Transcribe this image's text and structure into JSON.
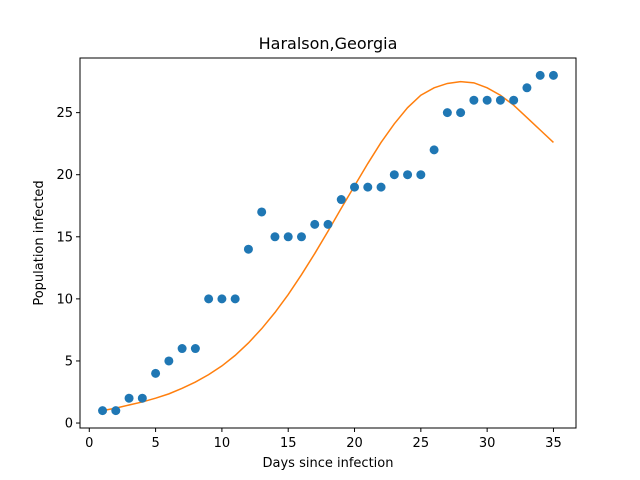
{
  "chart_data": {
    "type": "scatter",
    "title": "Haralson,Georgia",
    "xlabel": "Days since infection",
    "ylabel": "Population infected",
    "xlim": [
      -0.7,
      36.7
    ],
    "ylim": [
      -0.4,
      29.4
    ],
    "xticks": [
      0,
      5,
      10,
      15,
      20,
      25,
      30,
      35
    ],
    "yticks": [
      0,
      5,
      10,
      15,
      20,
      25
    ],
    "grid": false,
    "series": [
      {
        "kind": "scatter",
        "color": "#1f77b4",
        "x": [
          1,
          2,
          3,
          4,
          5,
          6,
          7,
          8,
          9,
          10,
          11,
          12,
          13,
          14,
          15,
          16,
          17,
          18,
          19,
          20,
          21,
          22,
          23,
          24,
          25,
          26,
          27,
          28,
          29,
          30,
          31,
          32,
          33,
          34,
          35
        ],
        "y": [
          1,
          1,
          2,
          2,
          4,
          5,
          6,
          6,
          10,
          10,
          10,
          14,
          17,
          15,
          15,
          15,
          16,
          16,
          18,
          19,
          19,
          19,
          20,
          20,
          20,
          22,
          25,
          25,
          26,
          26,
          26,
          26,
          27,
          28,
          28
        ]
      },
      {
        "kind": "line",
        "color": "#ff7f0e",
        "x": [
          1,
          2,
          3,
          4,
          5,
          6,
          7,
          8,
          9,
          10,
          11,
          12,
          13,
          14,
          15,
          16,
          17,
          18,
          19,
          20,
          21,
          22,
          23,
          24,
          25,
          26,
          27,
          28,
          29,
          30,
          31,
          32,
          33,
          34,
          35
        ],
        "y": [
          1.0,
          1.2,
          1.45,
          1.7,
          2.0,
          2.35,
          2.8,
          3.3,
          3.9,
          4.6,
          5.45,
          6.45,
          7.6,
          8.9,
          10.35,
          11.95,
          13.65,
          15.45,
          17.3,
          19.1,
          20.9,
          22.6,
          24.1,
          25.4,
          26.4,
          27.0,
          27.35,
          27.5,
          27.4,
          27.0,
          26.4,
          25.6,
          24.6,
          23.6,
          22.6
        ]
      }
    ]
  }
}
